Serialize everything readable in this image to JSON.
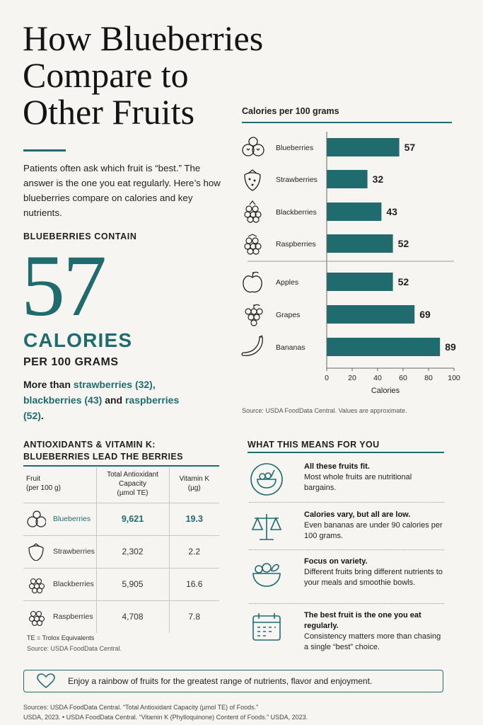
{
  "title_lines": [
    "How Blueberries",
    "Compare to",
    "Other Fruits"
  ],
  "intro": "Patients often ask which fruit is “best.” The answer is the one you eat regularly. Here’s how blueberries compare on calories and key nutrients.",
  "hero": {
    "label": "BLUEBERRIES CONTAIN",
    "number": "57",
    "unit": "CALORIES",
    "per": "PER 100 GRAMS",
    "more_prefix": "More than",
    "more_strawberries": "strawberries (32),",
    "more_blackberries": "blackberries (43)",
    "more_and": "and",
    "more_raspberries": "raspberries (52)",
    "more_end": "."
  },
  "chart_data": {
    "type": "bar",
    "orientation": "horizontal",
    "title": "Calories per 100 grams",
    "categories": [
      "Blueberries",
      "Strawberries",
      "Blackberries",
      "Raspberries",
      "Apples",
      "Grapes",
      "Bananas"
    ],
    "values": [
      57,
      32,
      43,
      52,
      52,
      69,
      89
    ],
    "xlabel": "Calories",
    "ylabel": "",
    "xlim": [
      0,
      100
    ],
    "xticks": [
      0,
      20,
      40,
      60,
      80,
      100
    ],
    "bar_color": "#1f6b6e",
    "group_divider_after": "Raspberries",
    "source": "Source: USDA FoodData Central. Values are approximate."
  },
  "antioxidants": {
    "title_line1": "ANTIOXIDANTS & VITAMIN K:",
    "title_line2": "BLUEBERRIES LEAD THE BERRIES",
    "headers": {
      "fruit1": "Fruit",
      "fruit2": "(per 100 g)",
      "tac1": "Total Antioxidant",
      "tac2": "Capacity",
      "tac3": "(µmol TE)",
      "vk1": "Vitamin K",
      "vk2": "(µg)"
    },
    "rows": [
      {
        "fruit": "Blueberries",
        "tac": "9,621",
        "vk": "19.3"
      },
      {
        "fruit": "Strawberries",
        "tac": "2,302",
        "vk": "2.2"
      },
      {
        "fruit": "Blackberries",
        "tac": "5,905",
        "vk": "16.6"
      },
      {
        "fruit": "Raspberries",
        "tac": "4,708",
        "vk": "7.8"
      }
    ],
    "note": "TE = Trolox Equivalents",
    "source": "Source: USDA FoodData Central."
  },
  "what_means": {
    "title": "WHAT THIS MEANS FOR YOU",
    "items": [
      {
        "icon": "fruit-bowl-icon",
        "heading": "All these fruits fit.",
        "body": "Most whole fruits are nutritional bargains."
      },
      {
        "icon": "scale-icon",
        "heading": "Calories vary, but all are low.",
        "body": "Even bananas are under 90 calories per 100 grams."
      },
      {
        "icon": "fruit-basket-icon",
        "heading": "Focus on variety.",
        "body": "Different fruits bring different nutrients to your meals and smoothie bowls."
      },
      {
        "icon": "calendar-icon",
        "heading": "The best fruit is the one you eat regularly.",
        "body": "Consistency matters more than chasing a single “best” choice."
      }
    ]
  },
  "banner": "Enjoy a rainbow of fruits for the greatest range of nutrients, flavor and enjoyment.",
  "footer_line1": "Sources: USDA FoodData Central. “Total Antioxidant Capacity (µmol TE) of Foods.”",
  "footer_line2": "USDA, 2023.  •  USDA FoodData Central. “Vitamin K (Phylloquinone) Content of Foods.” USDA, 2023.",
  "colors": {
    "accent": "#1f6b6e",
    "background": "#f7f5f1"
  }
}
